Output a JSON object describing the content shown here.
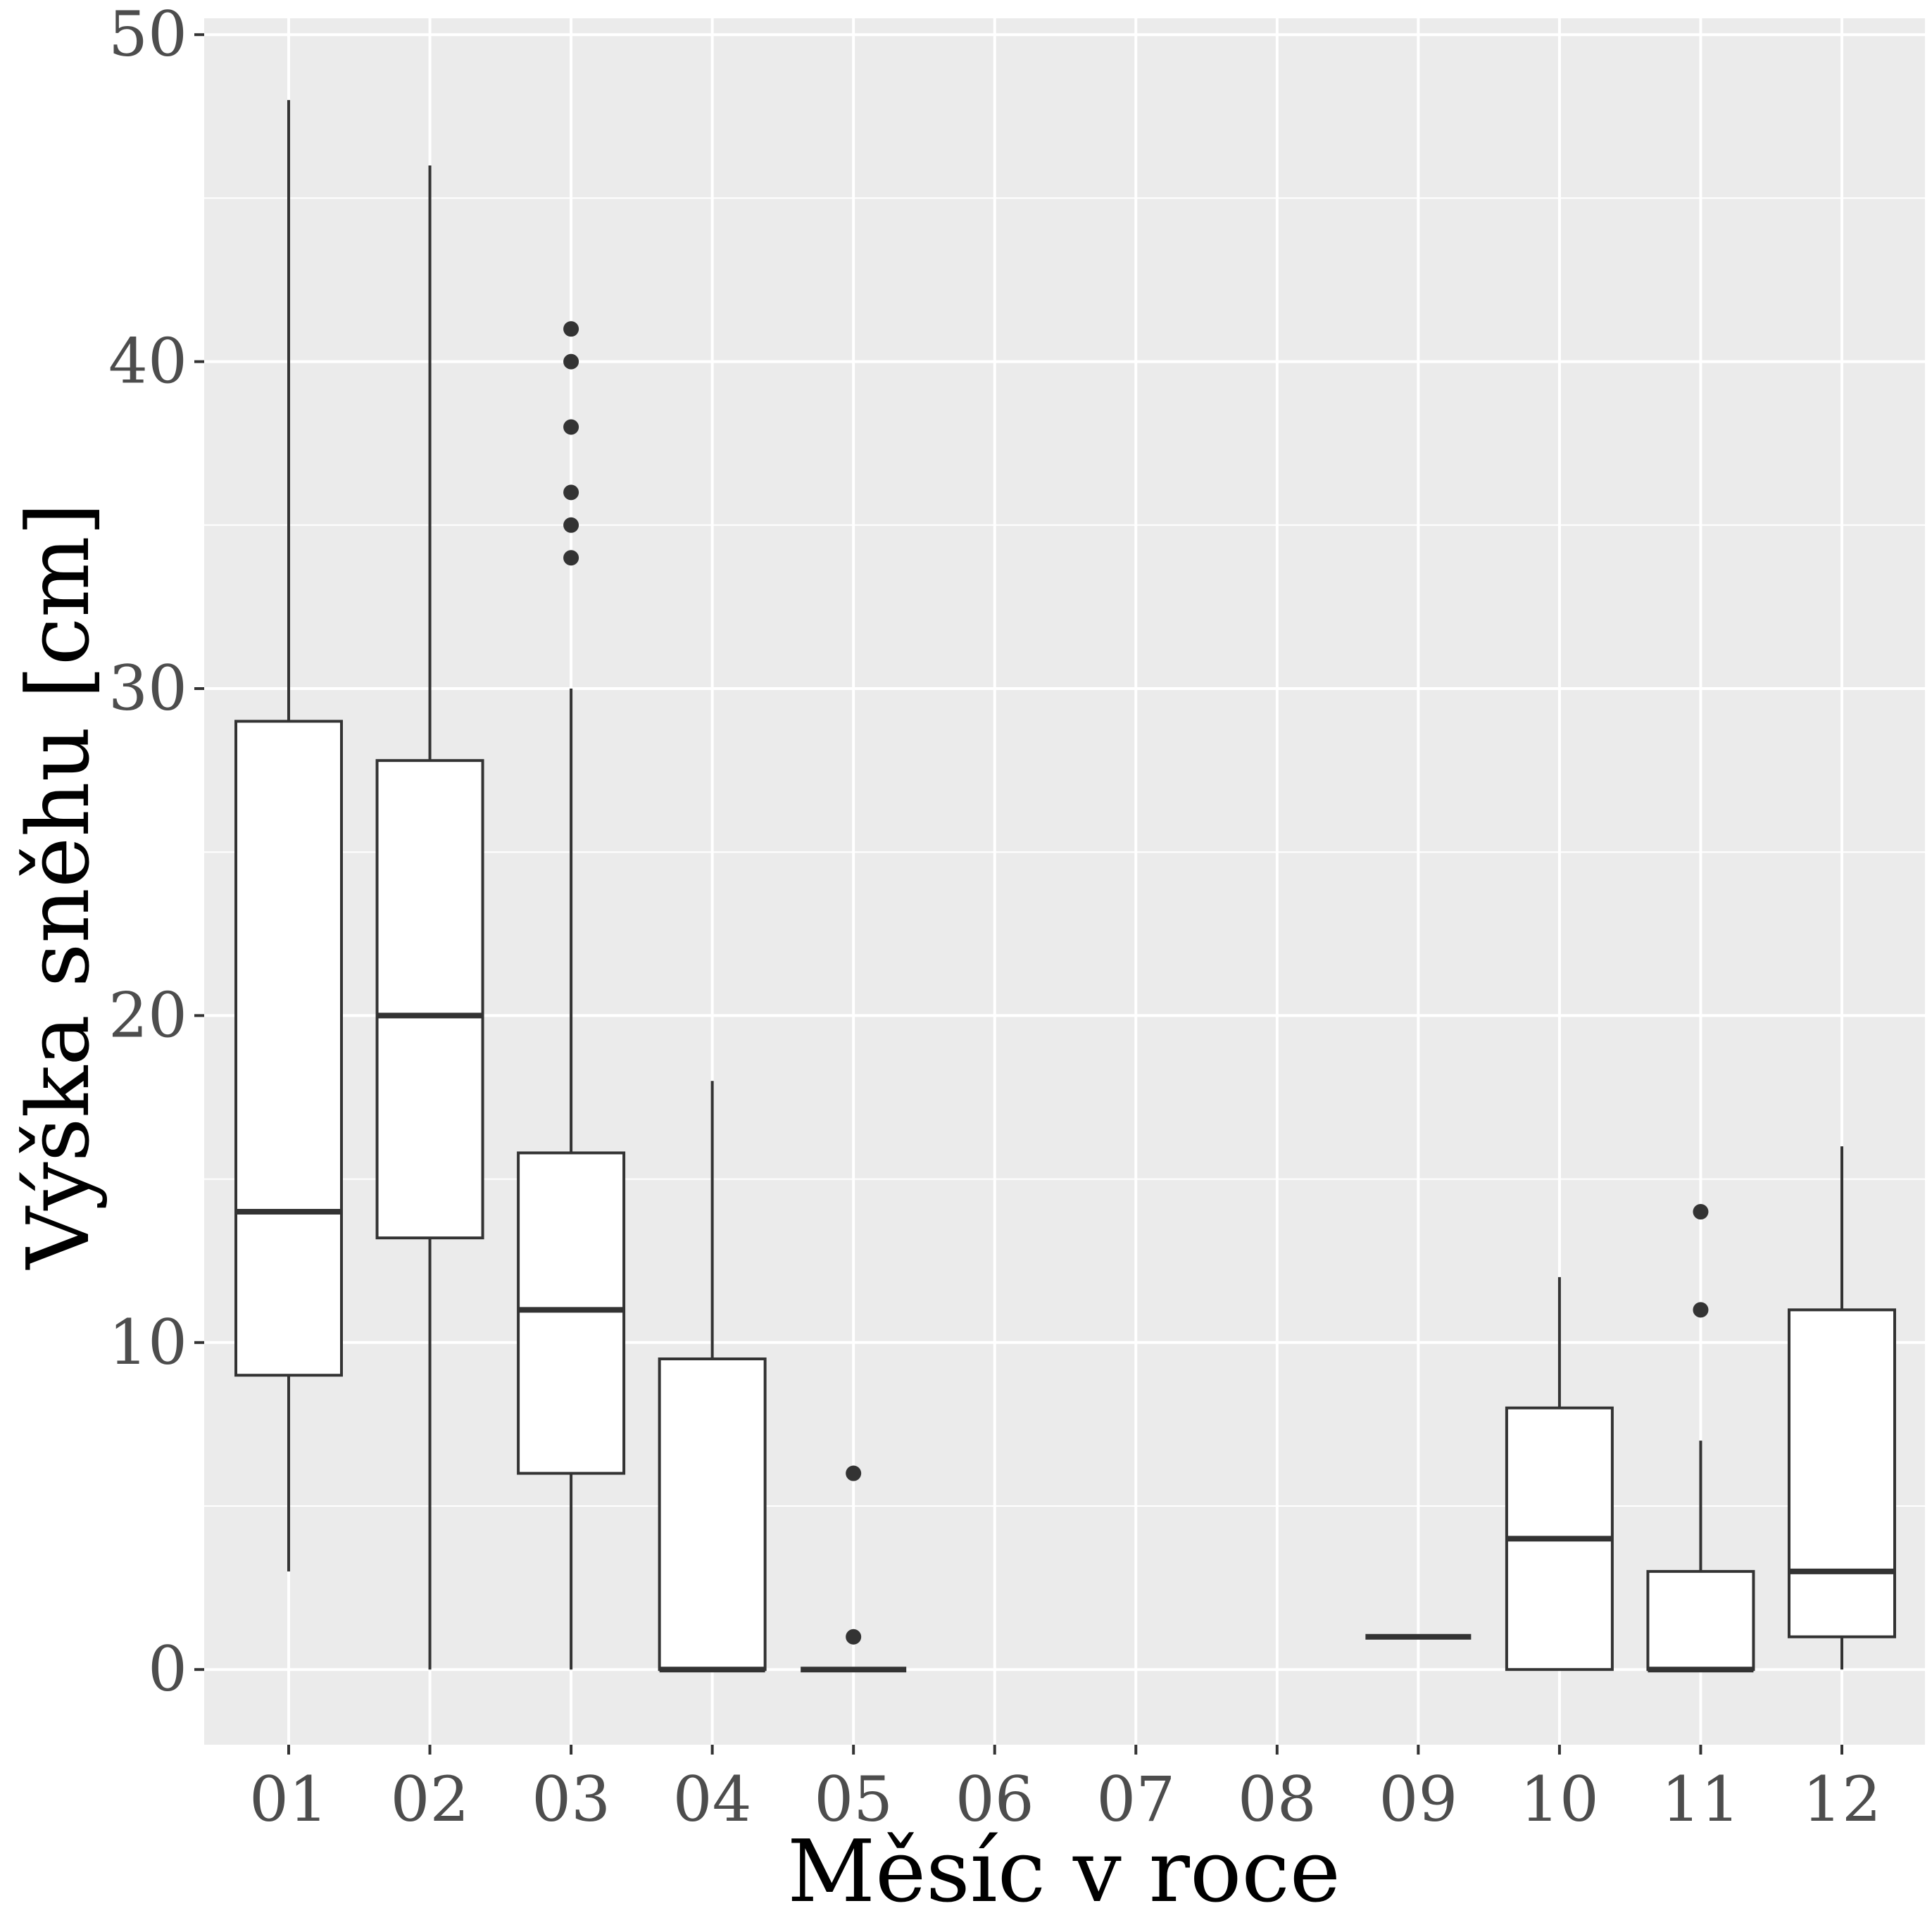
{
  "chart_data": {
    "type": "boxplot",
    "title": "",
    "xlabel": "Měsíc v roce",
    "ylabel": "Výška sněhu [cm]",
    "ylim": [
      -2.3,
      50.5
    ],
    "yticks": [
      0,
      10,
      20,
      30,
      40,
      50
    ],
    "grid": true,
    "legend": "none",
    "categories": [
      "01",
      "02",
      "03",
      "04",
      "05",
      "06",
      "07",
      "08",
      "09",
      "10",
      "11",
      "12"
    ],
    "boxes": [
      {
        "category": "01",
        "whisker_low": 3,
        "q1": 9,
        "median": 14,
        "q3": 29,
        "whisker_high": 48,
        "outliers": []
      },
      {
        "category": "02",
        "whisker_low": 0,
        "q1": 13.2,
        "median": 20,
        "q3": 27.8,
        "whisker_high": 46,
        "outliers": []
      },
      {
        "category": "03",
        "whisker_low": 0,
        "q1": 6,
        "median": 11,
        "q3": 15.8,
        "whisker_high": 30,
        "outliers": [
          34,
          35,
          36,
          38,
          40,
          41
        ]
      },
      {
        "category": "04",
        "whisker_low": 0,
        "q1": 0,
        "median": 0,
        "q3": 9.5,
        "whisker_high": 18,
        "outliers": []
      },
      {
        "category": "05",
        "whisker_low": 0,
        "q1": 0,
        "median": 0,
        "q3": 0,
        "whisker_high": 0,
        "outliers": [
          1,
          6
        ]
      },
      {
        "category": "09",
        "whisker_low": 1,
        "q1": 1,
        "median": 1,
        "q3": 1,
        "whisker_high": 1,
        "outliers": []
      },
      {
        "category": "10",
        "whisker_low": 0,
        "q1": 0,
        "median": 4,
        "q3": 8,
        "whisker_high": 12,
        "outliers": []
      },
      {
        "category": "11",
        "whisker_low": 0,
        "q1": 0,
        "median": 0,
        "q3": 3,
        "whisker_high": 7,
        "outliers": [
          11,
          14
        ]
      },
      {
        "category": "12",
        "whisker_low": 0,
        "q1": 1,
        "median": 3,
        "q3": 11,
        "whisker_high": 16,
        "outliers": []
      }
    ],
    "colors": {
      "panel_background": "#ebebeb",
      "grid": "#ffffff",
      "box_fill": "#ffffff",
      "box_stroke": "#333333",
      "tick_label": "#4d4d4d"
    }
  }
}
